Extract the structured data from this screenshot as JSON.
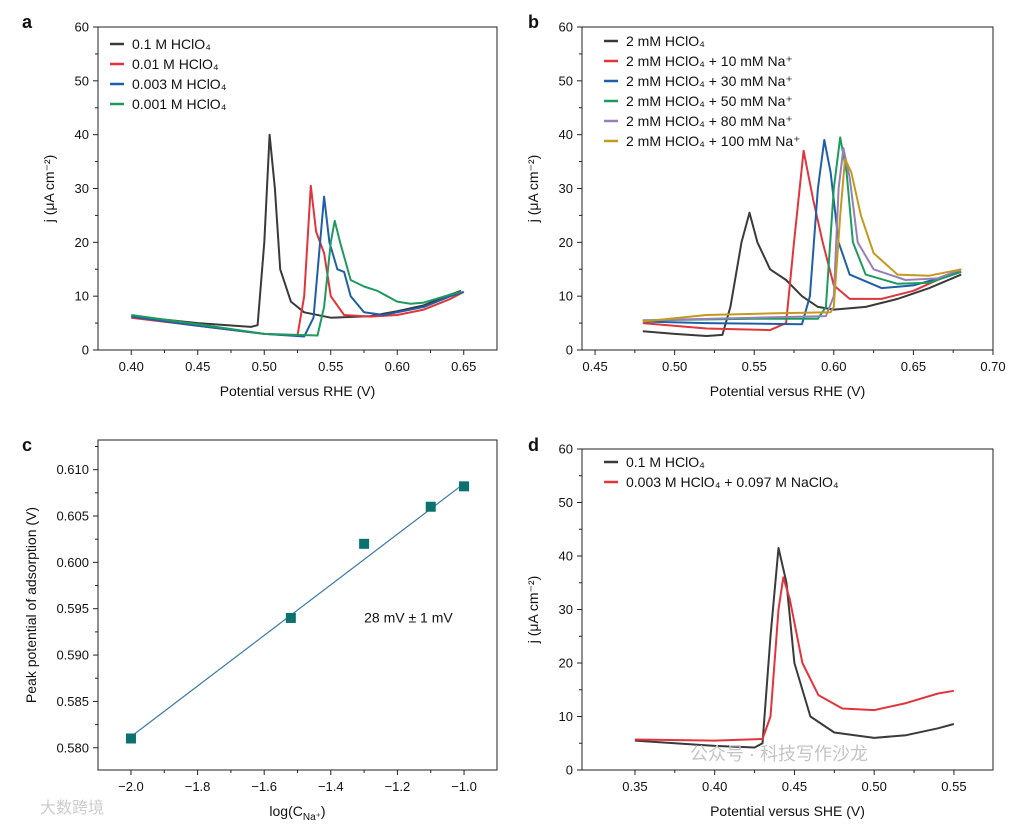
{
  "chart_data": [
    {
      "panel": "a",
      "type": "line",
      "xlabel": "Potential versus RHE (V)",
      "ylabel": "j (μA cm⁻²)",
      "xlim": [
        0.375,
        0.675
      ],
      "ylim": [
        0,
        60
      ],
      "xticks": [
        0.4,
        0.45,
        0.5,
        0.55,
        0.6,
        0.65
      ],
      "xtick_labels": [
        "0.40",
        "0.45",
        "0.50",
        "0.55",
        "0.60",
        "0.65"
      ],
      "yticks": [
        0,
        10,
        20,
        30,
        40,
        50,
        60
      ],
      "ytick_labels": [
        "0",
        "10",
        "20",
        "30",
        "40",
        "50",
        "60"
      ],
      "legend": "top-left",
      "series": [
        {
          "name": "0.1 M HClO₄",
          "color": "#3a3a3a",
          "points": [
            [
              0.4,
              6.3
            ],
            [
              0.45,
              5
            ],
            [
              0.49,
              4.3
            ],
            [
              0.495,
              4.6
            ],
            [
              0.5,
              20
            ],
            [
              0.504,
              40
            ],
            [
              0.508,
              30
            ],
            [
              0.512,
              15
            ],
            [
              0.52,
              9
            ],
            [
              0.53,
              7
            ],
            [
              0.55,
              6
            ],
            [
              0.58,
              6.3
            ],
            [
              0.6,
              7.2
            ],
            [
              0.62,
              8.3
            ],
            [
              0.64,
              10.3
            ],
            [
              0.648,
              11
            ]
          ]
        },
        {
          "name": "0.01 M HClO₄",
          "color": "#e0353b",
          "points": [
            [
              0.4,
              6
            ],
            [
              0.45,
              4.5
            ],
            [
              0.5,
              3
            ],
            [
              0.525,
              2.7
            ],
            [
              0.53,
              10
            ],
            [
              0.535,
              30.5
            ],
            [
              0.539,
              22
            ],
            [
              0.545,
              18
            ],
            [
              0.55,
              10
            ],
            [
              0.56,
              6.5
            ],
            [
              0.58,
              6.2
            ],
            [
              0.6,
              6.5
            ],
            [
              0.62,
              7.5
            ],
            [
              0.64,
              9.5
            ],
            [
              0.65,
              10.8
            ]
          ]
        },
        {
          "name": "0.003 M HClO₄",
          "color": "#1f5fa8",
          "points": [
            [
              0.4,
              6.2
            ],
            [
              0.45,
              4.5
            ],
            [
              0.5,
              3
            ],
            [
              0.53,
              2.5
            ],
            [
              0.537,
              6
            ],
            [
              0.542,
              20
            ],
            [
              0.545,
              28.5
            ],
            [
              0.549,
              20
            ],
            [
              0.555,
              15
            ],
            [
              0.56,
              14.5
            ],
            [
              0.565,
              10
            ],
            [
              0.575,
              7
            ],
            [
              0.59,
              6.5
            ],
            [
              0.6,
              7
            ],
            [
              0.62,
              8
            ],
            [
              0.64,
              10
            ],
            [
              0.65,
              10.8
            ]
          ]
        },
        {
          "name": "0.001 M HClO₄",
          "color": "#1f9a5e",
          "points": [
            [
              0.4,
              6.5
            ],
            [
              0.45,
              4.8
            ],
            [
              0.5,
              3
            ],
            [
              0.54,
              2.7
            ],
            [
              0.545,
              8
            ],
            [
              0.55,
              20
            ],
            [
              0.553,
              24
            ],
            [
              0.557,
              20
            ],
            [
              0.565,
              13
            ],
            [
              0.575,
              11.8
            ],
            [
              0.585,
              11
            ],
            [
              0.6,
              9
            ],
            [
              0.61,
              8.6
            ],
            [
              0.62,
              8.8
            ],
            [
              0.64,
              10.3
            ],
            [
              0.648,
              10.8
            ]
          ]
        }
      ]
    },
    {
      "panel": "b",
      "type": "line",
      "xlabel": "Potential versus RHE (V)",
      "ylabel": "j (μA cm⁻²)",
      "xlim": [
        0.4418,
        0.7
      ],
      "ylim": [
        0,
        60
      ],
      "xticks": [
        0.45,
        0.5,
        0.55,
        0.6,
        0.65,
        0.7
      ],
      "xtick_labels": [
        "0.45",
        "0.50",
        "0.55",
        "0.60",
        "0.65",
        "0.70"
      ],
      "yticks": [
        0,
        10,
        20,
        30,
        40,
        50,
        60
      ],
      "ytick_labels": [
        "0",
        "10",
        "20",
        "30",
        "40",
        "50",
        "60"
      ],
      "legend": "top-left",
      "series": [
        {
          "name": "2 mM HClO₄",
          "color": "#3a3a3a",
          "points": [
            [
              0.48,
              3.5
            ],
            [
              0.5,
              3
            ],
            [
              0.52,
              2.6
            ],
            [
              0.53,
              2.8
            ],
            [
              0.535,
              8
            ],
            [
              0.542,
              20
            ],
            [
              0.547,
              25.5
            ],
            [
              0.552,
              20
            ],
            [
              0.56,
              15
            ],
            [
              0.57,
              13
            ],
            [
              0.58,
              10
            ],
            [
              0.59,
              8
            ],
            [
              0.6,
              7.5
            ],
            [
              0.62,
              8
            ],
            [
              0.64,
              9.5
            ],
            [
              0.66,
              11.5
            ],
            [
              0.68,
              14
            ]
          ]
        },
        {
          "name": "2 mM HClO₄ + 10 mM Na⁺",
          "color": "#e0353b",
          "points": [
            [
              0.48,
              5
            ],
            [
              0.52,
              4
            ],
            [
              0.56,
              3.7
            ],
            [
              0.57,
              5
            ],
            [
              0.575,
              20
            ],
            [
              0.581,
              37
            ],
            [
              0.587,
              28
            ],
            [
              0.593,
              20
            ],
            [
              0.6,
              12
            ],
            [
              0.61,
              9.5
            ],
            [
              0.63,
              9.5
            ],
            [
              0.65,
              11
            ],
            [
              0.68,
              15
            ]
          ]
        },
        {
          "name": "2 mM HClO₄ + 30 mM Na⁺",
          "color": "#1f5fa8",
          "points": [
            [
              0.48,
              5.3
            ],
            [
              0.52,
              5
            ],
            [
              0.58,
              4.8
            ],
            [
              0.585,
              10
            ],
            [
              0.59,
              30
            ],
            [
              0.594,
              39
            ],
            [
              0.598,
              33
            ],
            [
              0.603,
              20
            ],
            [
              0.61,
              14
            ],
            [
              0.63,
              11.5
            ],
            [
              0.65,
              12
            ],
            [
              0.68,
              14.5
            ]
          ]
        },
        {
          "name": "2 mM HClO₄ + 50 mM Na⁺",
          "color": "#1f9a5e",
          "points": [
            [
              0.48,
              5.5
            ],
            [
              0.55,
              5.8
            ],
            [
              0.59,
              5.8
            ],
            [
              0.595,
              8
            ],
            [
              0.6,
              30
            ],
            [
              0.604,
              39.5
            ],
            [
              0.608,
              33
            ],
            [
              0.612,
              20
            ],
            [
              0.62,
              14
            ],
            [
              0.64,
              12.3
            ],
            [
              0.66,
              12.5
            ],
            [
              0.68,
              14.5
            ]
          ]
        },
        {
          "name": "2 mM HClO₄ + 80 mM Na⁺",
          "color": "#9580b8",
          "points": [
            [
              0.48,
              5.5
            ],
            [
              0.55,
              6
            ],
            [
              0.595,
              6.3
            ],
            [
              0.6,
              10
            ],
            [
              0.603,
              30
            ],
            [
              0.606,
              37.5
            ],
            [
              0.61,
              32
            ],
            [
              0.615,
              20
            ],
            [
              0.625,
              15
            ],
            [
              0.645,
              13
            ],
            [
              0.665,
              13.3
            ],
            [
              0.68,
              15
            ]
          ]
        },
        {
          "name": "2 mM HClO₄ + 100 mM Na⁺",
          "color": "#c39a1e",
          "points": [
            [
              0.48,
              5.3
            ],
            [
              0.52,
              6.5
            ],
            [
              0.56,
              6.8
            ],
            [
              0.598,
              7
            ],
            [
              0.6,
              8
            ],
            [
              0.604,
              25
            ],
            [
              0.607,
              35.5
            ],
            [
              0.611,
              33
            ],
            [
              0.617,
              25
            ],
            [
              0.625,
              18
            ],
            [
              0.64,
              14
            ],
            [
              0.66,
              13.8
            ],
            [
              0.68,
              15
            ]
          ]
        }
      ]
    },
    {
      "panel": "c",
      "type": "scatter",
      "xlabel_main": "log(C",
      "xlabel_sub": "Na⁺",
      "xlabel_end": ")",
      "ylabel": "Peak potential of adsorption (V)",
      "xlim": [
        -2.099,
        -0.901
      ],
      "ylim": [
        0.5776,
        0.6132
      ],
      "xticks": [
        -2.0,
        -1.8,
        -1.6,
        -1.4,
        -1.2,
        -1.0
      ],
      "xtick_labels": [
        "−2.0",
        "−1.8",
        "−1.6",
        "−1.4",
        "−1.2",
        "−1.0"
      ],
      "yticks": [
        0.58,
        0.585,
        0.59,
        0.595,
        0.6,
        0.605,
        0.61
      ],
      "ytick_labels": [
        "0.580",
        "0.585",
        "0.590",
        "0.595",
        "0.600",
        "0.605",
        "0.610"
      ],
      "marker_color": "#0b7270",
      "fit_color": "#3a78a8",
      "points": [
        [
          -2.0,
          0.581
        ],
        [
          -1.52,
          0.594
        ],
        [
          -1.3,
          0.602
        ],
        [
          -1.1,
          0.606
        ],
        [
          -1.0,
          0.6082
        ]
      ],
      "fit": [
        [
          -2.0,
          0.5812
        ],
        [
          -1.0,
          0.6085
        ]
      ],
      "annotation": "28 mV ± 1 mV",
      "annotation_pos": [
        -1.3,
        0.5935
      ]
    },
    {
      "panel": "d",
      "type": "line",
      "xlabel": "Potential versus SHE (V)",
      "ylabel": "j (μA cm⁻²)",
      "xlim": [
        0.3168,
        0.5745
      ],
      "ylim": [
        0,
        60
      ],
      "xticks": [
        0.35,
        0.4,
        0.45,
        0.5,
        0.55
      ],
      "xtick_labels": [
        "0.35",
        "0.40",
        "0.45",
        "0.50",
        "0.55"
      ],
      "yticks": [
        0,
        10,
        20,
        30,
        40,
        50,
        60
      ],
      "ytick_labels": [
        "0",
        "10",
        "20",
        "30",
        "40",
        "50",
        "60"
      ],
      "legend": "top-left",
      "series": [
        {
          "name": "0.1 M HClO₄",
          "color": "#3a3a3a",
          "points": [
            [
              0.35,
              5.5
            ],
            [
              0.4,
              4.5
            ],
            [
              0.425,
              4.2
            ],
            [
              0.43,
              5
            ],
            [
              0.435,
              25
            ],
            [
              0.44,
              41.5
            ],
            [
              0.445,
              35
            ],
            [
              0.45,
              20
            ],
            [
              0.46,
              10
            ],
            [
              0.475,
              7
            ],
            [
              0.5,
              6
            ],
            [
              0.52,
              6.5
            ],
            [
              0.54,
              7.8
            ],
            [
              0.55,
              8.6
            ]
          ]
        },
        {
          "name": "0.003 M HClO₄ + 0.097 M NaClO₄",
          "color": "#e0353b",
          "points": [
            [
              0.35,
              5.7
            ],
            [
              0.4,
              5.5
            ],
            [
              0.43,
              5.8
            ],
            [
              0.435,
              10
            ],
            [
              0.44,
              30
            ],
            [
              0.443,
              36
            ],
            [
              0.447,
              32
            ],
            [
              0.455,
              20
            ],
            [
              0.465,
              14
            ],
            [
              0.48,
              11.5
            ],
            [
              0.5,
              11.2
            ],
            [
              0.52,
              12.5
            ],
            [
              0.54,
              14.3
            ],
            [
              0.55,
              14.8
            ]
          ]
        }
      ]
    }
  ],
  "watermarks": {
    "left": "大数跨境",
    "right": "公众号 · 科技写作沙龙"
  }
}
